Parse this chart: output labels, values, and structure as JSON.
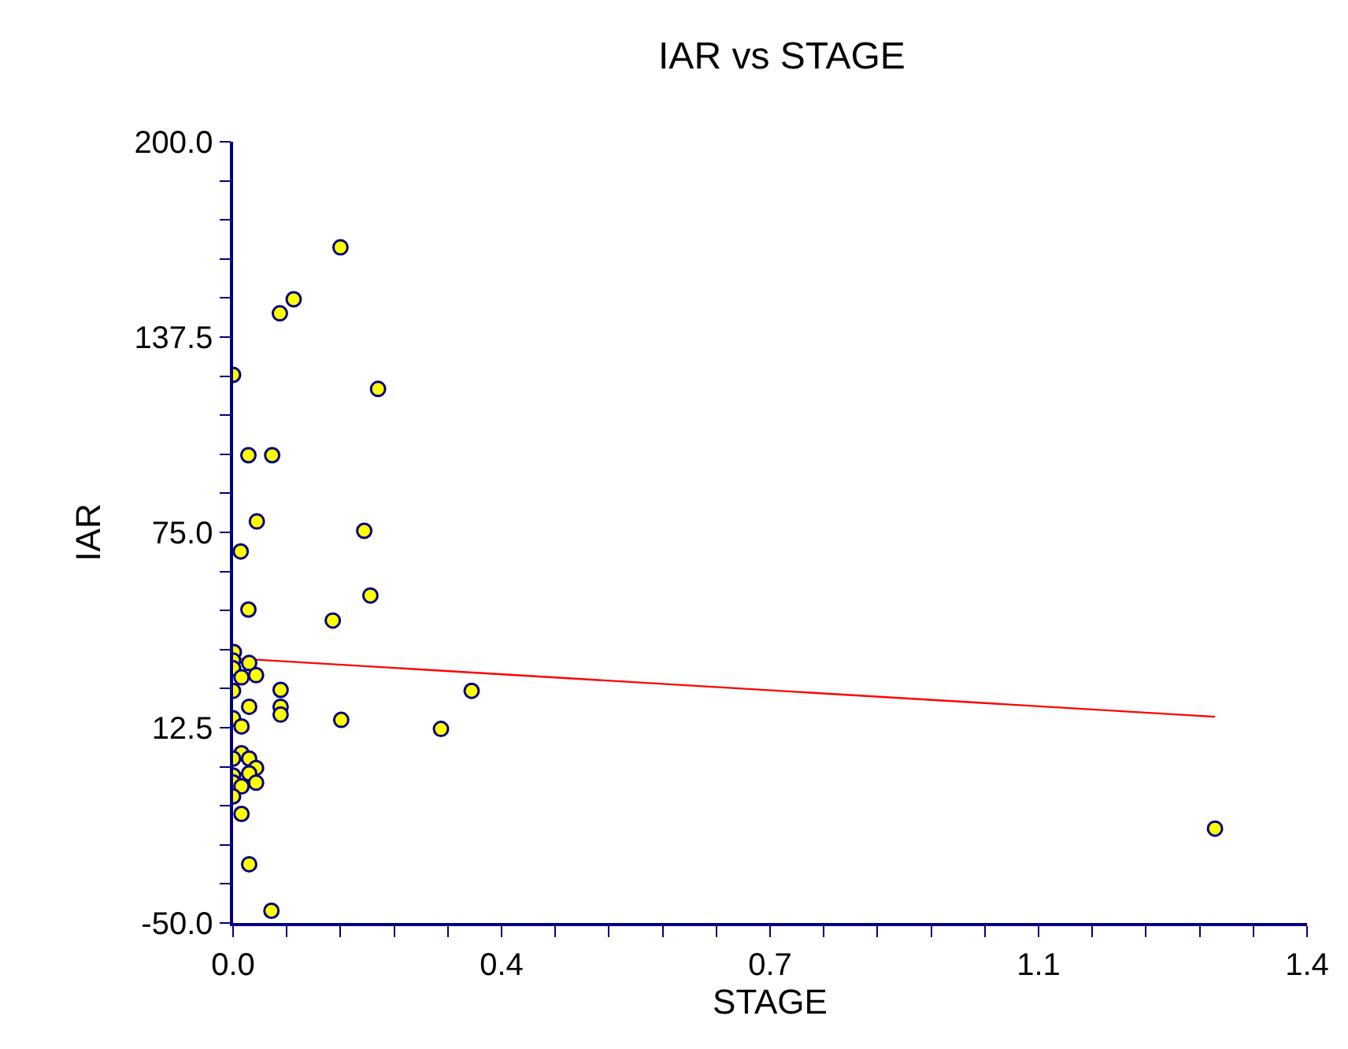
{
  "chart_data": {
    "type": "scatter",
    "title": "IAR vs STAGE",
    "xlabel": "STAGE",
    "ylabel": "IAR",
    "xlim": [
      0,
      1.4
    ],
    "ylim": [
      -50,
      200
    ],
    "xticks": [
      {
        "value": 0,
        "label": "0.0"
      },
      {
        "value": 0.07,
        "label": null
      },
      {
        "value": 0.14,
        "label": null
      },
      {
        "value": 0.21,
        "label": null
      },
      {
        "value": 0.28,
        "label": null
      },
      {
        "value": 0.35,
        "label": "0.4"
      },
      {
        "value": 0.42,
        "label": null
      },
      {
        "value": 0.49,
        "label": null
      },
      {
        "value": 0.56,
        "label": null
      },
      {
        "value": 0.63,
        "label": null
      },
      {
        "value": 0.7,
        "label": "0.7"
      },
      {
        "value": 0.77,
        "label": null
      },
      {
        "value": 0.84,
        "label": null
      },
      {
        "value": 0.91,
        "label": null
      },
      {
        "value": 0.98,
        "label": null
      },
      {
        "value": 1.05,
        "label": "1.1"
      },
      {
        "value": 1.12,
        "label": null
      },
      {
        "value": 1.19,
        "label": null
      },
      {
        "value": 1.26,
        "label": null
      },
      {
        "value": 1.33,
        "label": null
      },
      {
        "value": 1.4,
        "label": "1.4"
      }
    ],
    "yticks": [
      {
        "value": -50,
        "label": "-50.0"
      },
      {
        "value": -37.5,
        "label": null
      },
      {
        "value": -25,
        "label": null
      },
      {
        "value": -12.5,
        "label": null
      },
      {
        "value": 0,
        "label": null
      },
      {
        "value": 12.5,
        "label": "12.5"
      },
      {
        "value": 25,
        "label": null
      },
      {
        "value": 37.5,
        "label": null
      },
      {
        "value": 50,
        "label": null
      },
      {
        "value": 62.5,
        "label": null
      },
      {
        "value": 75,
        "label": "75.0"
      },
      {
        "value": 87.5,
        "label": null
      },
      {
        "value": 100,
        "label": null
      },
      {
        "value": 112.5,
        "label": null
      },
      {
        "value": 125,
        "label": null
      },
      {
        "value": 137.5,
        "label": "137.5"
      },
      {
        "value": 150,
        "label": null
      },
      {
        "value": 162.5,
        "label": null
      },
      {
        "value": 175,
        "label": null
      },
      {
        "value": 187.5,
        "label": null
      },
      {
        "value": 200,
        "label": "200.0"
      }
    ],
    "marker": "circle",
    "series": [
      {
        "color": "#ffff00",
        "x": [
          0.14,
          0.079,
          0.061,
          0,
          0.189,
          0.02,
          0.051,
          0.031,
          0.171,
          0.01,
          0.179,
          0.02,
          0.13,
          0.001,
          0,
          0,
          0.021,
          0.011,
          0.03,
          0,
          0.062,
          0.311,
          0.021,
          0.062,
          0.062,
          0,
          0.141,
          0.011,
          0.271,
          0.011,
          0,
          0.021,
          0.03,
          0.021,
          0,
          0,
          0.03,
          0.011,
          0,
          0.011,
          0.021,
          0.05,
          1.28
        ],
        "values": [
          166.2,
          149.6,
          145.1,
          125.4,
          120.9,
          99.7,
          99.7,
          78.5,
          75.5,
          68.9,
          54.8,
          50.3,
          46.8,
          36.7,
          34.0,
          31.5,
          33.2,
          28.6,
          29.3,
          24.3,
          24.6,
          24.3,
          19.2,
          19.2,
          16.7,
          15.5,
          15.0,
          12.9,
          12.1,
          4.3,
          2.6,
          2.6,
          -0.4,
          -2.1,
          -2.8,
          -5.0,
          -5.1,
          -6.3,
          -9.5,
          -15.1,
          -31.2,
          -46.1,
          -19.8
        ]
      },
      {
        "type": "line",
        "color": "#ff0000",
        "marker": "none",
        "x": [
          0,
          1.28
        ],
        "values": [
          34.7,
          16.0
        ]
      }
    ]
  }
}
